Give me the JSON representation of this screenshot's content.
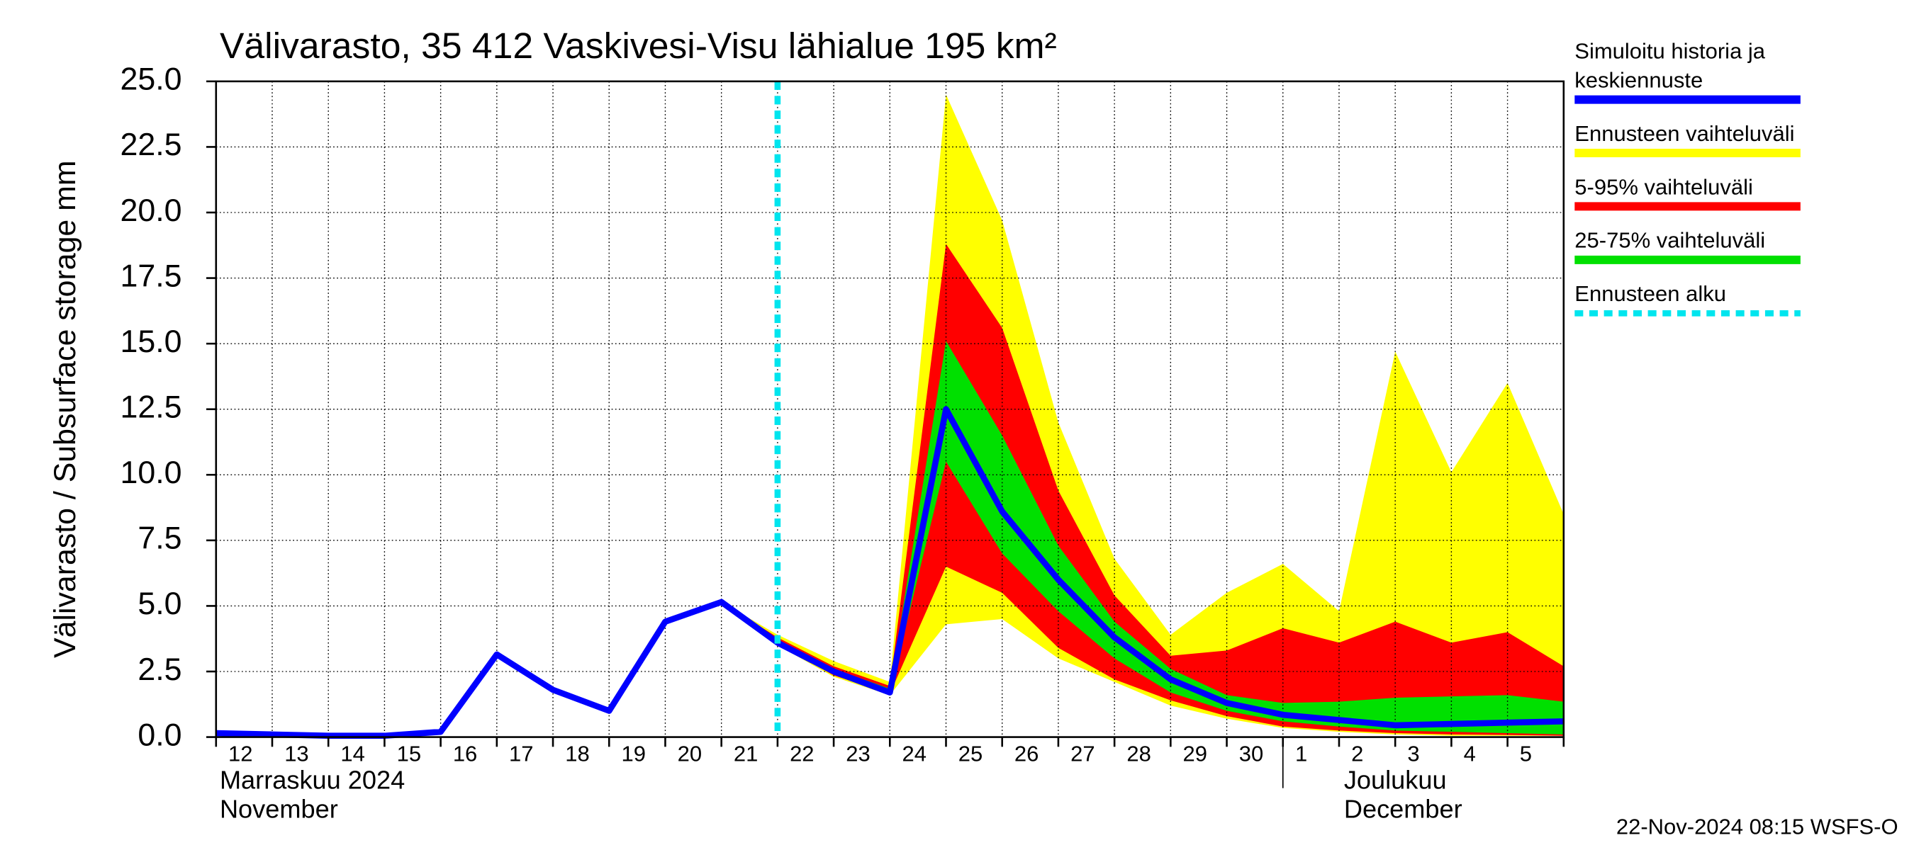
{
  "chart_data": {
    "type": "line",
    "title": "Välivarasto, 35 412 Vaskivesi-Visu lähialue 195 km²",
    "y_label": "Välivarasto / Subsurface storage  mm",
    "categories": [
      "12",
      "13",
      "14",
      "15",
      "16",
      "17",
      "18",
      "19",
      "20",
      "21",
      "22",
      "23",
      "24",
      "25",
      "26",
      "27",
      "28",
      "29",
      "30",
      "1",
      "2",
      "3",
      "4",
      "5",
      null
    ],
    "month_labels": [
      {
        "text": "Marraskuu 2024",
        "text2": "November",
        "at": "12"
      },
      {
        "text": "Joulukuu",
        "text2": "December",
        "at": "1"
      }
    ],
    "ylim": [
      0,
      25
    ],
    "yticks": [
      {
        "value": 0,
        "label": "0.0"
      },
      2.5,
      {
        "value": 5,
        "label": "5.0"
      },
      7.5,
      {
        "value": 10,
        "label": "10.0"
      },
      12.5,
      {
        "value": 15,
        "label": "15.0"
      },
      17.5,
      {
        "value": 20,
        "label": "20.0"
      },
      22.5,
      {
        "value": 25,
        "label": "25.0"
      }
    ],
    "grid": true,
    "series": [
      {
        "name": "Ennusteen vaihteluväli",
        "color": "#ffff00",
        "kind": "band",
        "values": [
          null,
          null,
          null,
          null,
          null,
          null,
          null,
          null,
          null,
          5.15,
          3.9,
          2.9,
          2.1,
          24.5,
          19.7,
          12.0,
          6.8,
          3.9,
          5.5,
          6.6,
          4.8,
          14.7,
          10.1,
          13.5,
          8.5
        ],
        "lower": [
          null,
          null,
          null,
          null,
          null,
          null,
          null,
          null,
          null,
          5.15,
          3.5,
          2.3,
          1.6,
          4.3,
          4.5,
          3.0,
          2.1,
          1.2,
          0.7,
          0.35,
          0.2,
          0.1,
          0.05,
          0.05,
          0.05
        ]
      },
      {
        "name": "5-95% vaihteluväli",
        "color": "#ff0000",
        "kind": "band",
        "values": [
          null,
          null,
          null,
          null,
          null,
          null,
          null,
          null,
          null,
          5.15,
          3.8,
          2.7,
          1.95,
          18.8,
          15.6,
          9.4,
          5.4,
          3.1,
          3.3,
          4.15,
          3.6,
          4.4,
          3.6,
          4.0,
          2.7
        ],
        "lower": [
          null,
          null,
          null,
          null,
          null,
          null,
          null,
          null,
          null,
          5.15,
          3.55,
          2.35,
          1.65,
          6.5,
          5.5,
          3.4,
          2.2,
          1.4,
          0.8,
          0.4,
          0.25,
          0.15,
          0.1,
          0.08,
          0.05
        ]
      },
      {
        "name": "25-75% vaihteluväli",
        "color": "#00e000",
        "kind": "band",
        "values": [
          null,
          null,
          null,
          null,
          null,
          null,
          null,
          null,
          null,
          5.15,
          3.7,
          2.6,
          1.85,
          15.1,
          11.5,
          7.3,
          4.4,
          2.6,
          1.6,
          1.3,
          1.35,
          1.5,
          1.55,
          1.6,
          1.35
        ],
        "lower": [
          null,
          null,
          null,
          null,
          null,
          null,
          null,
          null,
          null,
          5.15,
          3.6,
          2.45,
          1.7,
          10.5,
          7.0,
          4.8,
          3.0,
          1.7,
          1.0,
          0.6,
          0.4,
          0.25,
          0.2,
          0.15,
          0.1
        ]
      },
      {
        "name": "Simuloitu historia ja keskiennuste",
        "color": "#0000ff",
        "kind": "line",
        "values": [
          0.15,
          0.1,
          0.05,
          0.05,
          0.2,
          3.15,
          1.8,
          1.0,
          4.4,
          5.15,
          3.6,
          2.5,
          1.7,
          12.5,
          8.6,
          6.0,
          3.8,
          2.2,
          1.3,
          0.85,
          0.65,
          0.45,
          0.5,
          0.55,
          0.6
        ]
      }
    ],
    "forecast_start": {
      "name": "Ennusteen alku",
      "color": "#00e5ee",
      "at": "22"
    },
    "legend_order": [
      3,
      0,
      1,
      2
    ],
    "footer": "22-Nov-2024 08:15 WSFS-O"
  }
}
